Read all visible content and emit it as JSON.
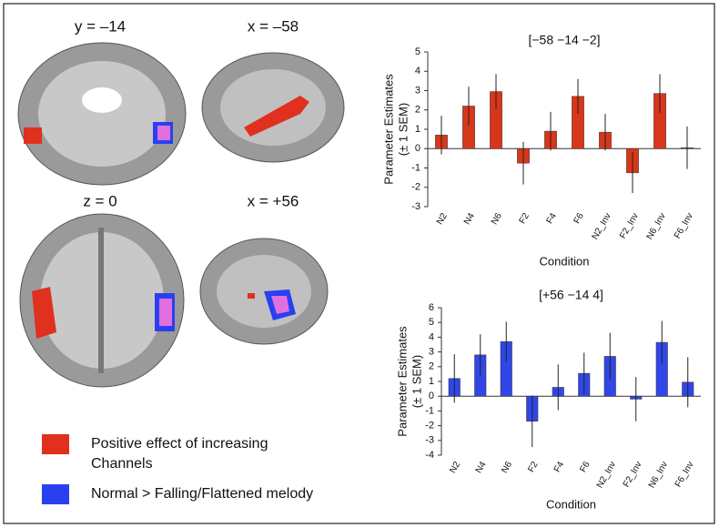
{
  "panels": [
    {
      "label": "y = –14"
    },
    {
      "label": "x = –58"
    },
    {
      "label": "z = 0"
    },
    {
      "label": "x = +56"
    }
  ],
  "legend": [
    {
      "label": [
        "Positive effect of increasing",
        "Channels"
      ],
      "color": "#e0301e"
    },
    {
      "label": [
        "Normal > Falling/Flattened melody"
      ],
      "color": "#2a40f0"
    }
  ],
  "chart_data": [
    {
      "type": "bar",
      "title": "[−58 −14 −2]",
      "ylabel": [
        "Parameter Estimates",
        "(± 1 SEM)"
      ],
      "xlabel": "Condition",
      "categories": [
        "N2",
        "N4",
        "N6",
        "F2",
        "F4",
        "F6",
        "N2_Inv",
        "F2_Inv",
        "N6_Inv",
        "F6_Inv"
      ],
      "values": [
        0.7,
        2.2,
        2.95,
        -0.75,
        0.9,
        2.7,
        0.85,
        -1.25,
        2.85,
        0.05
      ],
      "errors": [
        1.0,
        1.0,
        0.9,
        1.1,
        1.0,
        0.9,
        0.95,
        1.05,
        1.0,
        1.1
      ],
      "color": "#d8361a",
      "ylim": [
        -3,
        5
      ],
      "yticks": [
        -3,
        -2,
        -1,
        0,
        1,
        2,
        3,
        4,
        5
      ]
    },
    {
      "type": "bar",
      "title": "[+56 −14 4]",
      "ylabel": [
        "Parameter Estimates",
        "(± 1 SEM)"
      ],
      "xlabel": "Condition",
      "categories": [
        "N2",
        "N4",
        "N6",
        "F2",
        "F4",
        "F6",
        "N2_Inv",
        "F2_Inv",
        "N6_Inv",
        "F6_Inv"
      ],
      "values": [
        1.2,
        2.8,
        3.7,
        -1.7,
        0.6,
        1.55,
        2.7,
        -0.2,
        3.65,
        0.95
      ],
      "errors": [
        1.65,
        1.4,
        1.35,
        1.75,
        1.55,
        1.4,
        1.6,
        1.5,
        1.45,
        1.7
      ],
      "color": "#3146e6",
      "ylim": [
        -4,
        6
      ],
      "yticks": [
        -4,
        -3,
        -2,
        -1,
        0,
        1,
        2,
        3,
        4,
        5,
        6
      ]
    }
  ]
}
